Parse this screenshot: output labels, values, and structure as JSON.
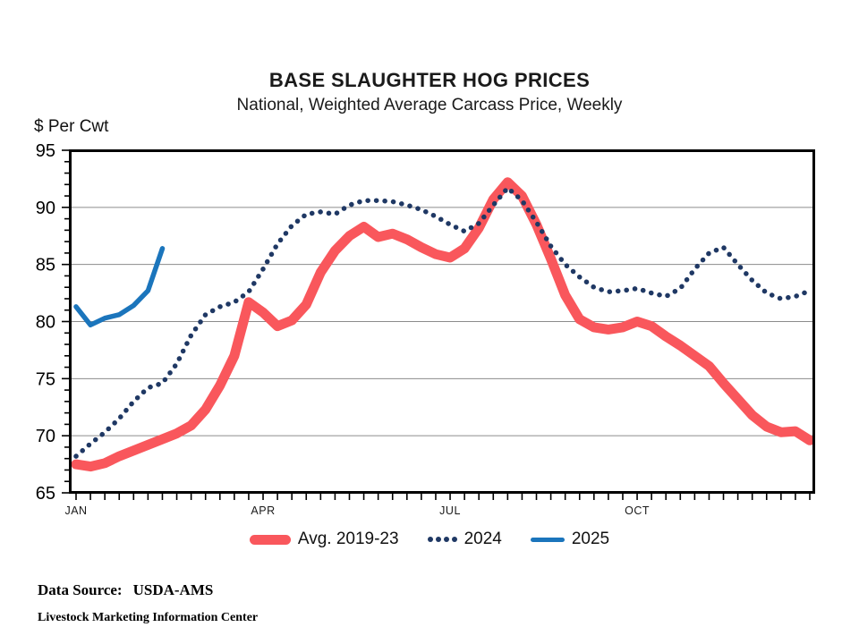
{
  "title": "BASE SLAUGHTER HOG PRICES",
  "subtitle": "National, Weighted Average Carcass Price, Weekly",
  "chart_data": {
    "type": "line",
    "title": "BASE SLAUGHTER HOG PRICES",
    "subtitle": "National, Weighted Average Carcass Price, Weekly",
    "ylabel": "$ Per Cwt",
    "xlabel": "",
    "ylim": [
      65,
      95
    ],
    "ytick_step": 5,
    "grid": "horizontal-major",
    "x_weeks": 52,
    "month_ticks": [
      {
        "label": "JAN",
        "week": 1
      },
      {
        "label": "APR",
        "week": 14
      },
      {
        "label": "JUL",
        "week": 27
      },
      {
        "label": "OCT",
        "week": 40
      }
    ],
    "legend_position": "bottom",
    "series": [
      {
        "name": "Avg. 2019-23",
        "color": "#f9575c",
        "style": "solid",
        "stroke_width": 11,
        "values": [
          67.5,
          67.3,
          67.6,
          68.2,
          68.7,
          69.2,
          69.7,
          70.2,
          70.9,
          72.3,
          74.4,
          77.0,
          81.7,
          80.8,
          79.6,
          80.1,
          81.5,
          84.3,
          86.2,
          87.5,
          88.3,
          87.4,
          87.7,
          87.2,
          86.5,
          85.9,
          85.6,
          86.4,
          88.2,
          90.7,
          92.2,
          91.0,
          88.5,
          85.5,
          82.3,
          80.2,
          79.5,
          79.3,
          79.5,
          80.0,
          79.6,
          78.7,
          77.9,
          77.0,
          76.1,
          74.6,
          73.2,
          71.8,
          70.8,
          70.3,
          70.4,
          69.6
        ]
      },
      {
        "name": "2024",
        "color": "#1f3864",
        "style": "dotted",
        "stroke_width": 5.5,
        "values": [
          68.2,
          69.3,
          70.3,
          71.5,
          73.0,
          74.2,
          74.6,
          76.3,
          78.8,
          80.6,
          81.3,
          81.7,
          82.6,
          84.6,
          86.8,
          88.4,
          89.4,
          89.6,
          89.4,
          90.2,
          90.6,
          90.6,
          90.5,
          90.2,
          89.8,
          89.2,
          88.5,
          87.9,
          88.6,
          90.2,
          91.7,
          90.6,
          88.7,
          86.6,
          85.0,
          83.9,
          83.0,
          82.6,
          82.7,
          82.9,
          82.5,
          82.2,
          82.9,
          84.6,
          86.0,
          86.5,
          85.0,
          83.6,
          82.5,
          82.0,
          82.2,
          82.7
        ]
      },
      {
        "name": "2025",
        "color": "#1b75bc",
        "style": "solid",
        "stroke_width": 5.5,
        "values": [
          81.3,
          79.7,
          80.3,
          80.6,
          81.4,
          82.7,
          86.4
        ]
      }
    ]
  },
  "legend": {
    "avg_label": "Avg. 2019-23",
    "y2024_label": "2024",
    "y2025_label": "2025"
  },
  "footer": {
    "source_label": "Data Source:",
    "source_value": "USDA-AMS",
    "org_line": "Livestock Marketing Information Center"
  }
}
